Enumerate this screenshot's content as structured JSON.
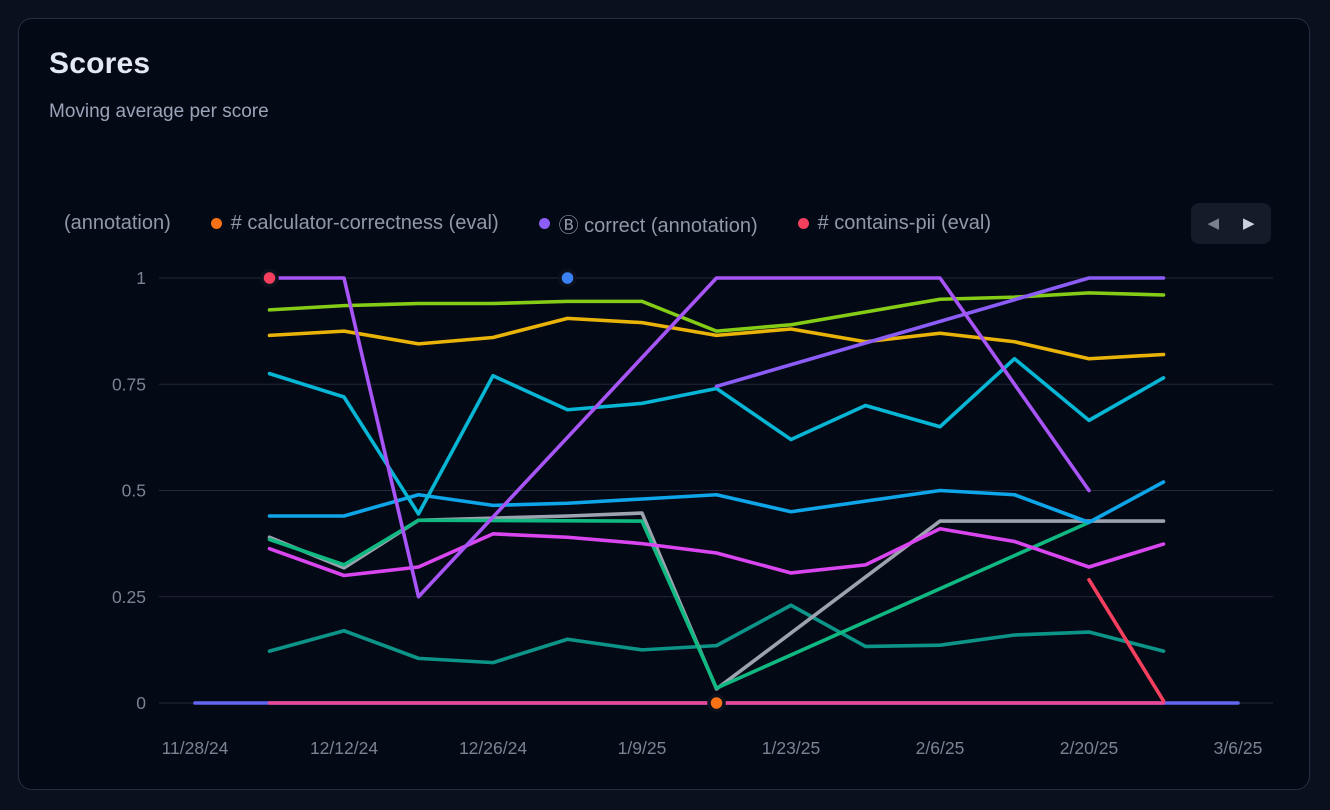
{
  "card": {
    "title": "Scores",
    "subtitle": "Moving average per score"
  },
  "legend": {
    "items": [
      {
        "label": "(annotation)",
        "dot": null
      },
      {
        "label": "# calculator-correctness (eval)",
        "dot": "#f97316"
      },
      {
        "label": "Ⓑ correct (annotation)",
        "dot": "#8b5cf6"
      },
      {
        "label": "# contains-pii (eval)",
        "dot": "#f43f5e"
      }
    ],
    "prev_icon": "◀",
    "next_icon": "▶"
  },
  "chart_data": {
    "type": "line",
    "title": "Scores",
    "subtitle": "Moving average per score",
    "grid": "horizontal",
    "legend_position": "top",
    "ylim": [
      0,
      1
    ],
    "y_tick_labels": [
      "0",
      "0.25",
      "0.5",
      "0.75",
      "1"
    ],
    "y_ticks": [
      0,
      0.25,
      0.5,
      0.75,
      1
    ],
    "x_tick_labels": [
      "11/28/24",
      "12/12/24",
      "12/26/24",
      "1/9/25",
      "1/23/25",
      "2/6/25",
      "2/20/25",
      "3/6/25"
    ],
    "x_week_dates": [
      "11/28/24",
      "12/5/24",
      "12/12/24",
      "12/19/24",
      "12/26/24",
      "1/2/25",
      "1/9/25",
      "1/16/25",
      "1/23/25",
      "1/30/25",
      "2/6/25",
      "2/13/25",
      "2/20/25",
      "2/27/25",
      "3/6/25"
    ],
    "series": [
      {
        "id": "indigo-baseline",
        "color": "#6366f1",
        "points": [
          [
            0,
            0
          ],
          [
            14,
            0
          ]
        ]
      },
      {
        "id": "pink-baseline",
        "color": "#ec4899",
        "points": [
          [
            1,
            0
          ],
          [
            13,
            0
          ]
        ]
      },
      {
        "id": "teal-line",
        "color": "#0d9488",
        "points": [
          [
            1,
            0.122
          ],
          [
            2,
            0.17
          ],
          [
            3,
            0.105
          ],
          [
            4,
            0.095
          ],
          [
            5,
            0.15
          ],
          [
            6,
            0.125
          ],
          [
            7,
            0.135
          ],
          [
            8,
            0.23
          ],
          [
            9,
            0.133
          ],
          [
            10,
            0.136
          ],
          [
            11,
            0.16
          ],
          [
            12,
            0.167
          ],
          [
            13,
            0.122
          ]
        ]
      },
      {
        "id": "gray-line",
        "color": "#9ca3af",
        "points": [
          [
            1,
            0.39
          ],
          [
            2,
            0.318
          ],
          [
            3,
            0.43
          ],
          [
            5,
            0.44
          ],
          [
            6,
            0.447
          ],
          [
            7,
            0.033
          ],
          [
            10,
            0.428
          ],
          [
            13,
            0.428
          ]
        ]
      },
      {
        "id": "emerald-line",
        "color": "#10b981",
        "points": [
          [
            1,
            0.385
          ],
          [
            2,
            0.325
          ],
          [
            3,
            0.43
          ],
          [
            6,
            0.428
          ],
          [
            7,
            0.035
          ],
          [
            12,
            0.425
          ]
        ]
      },
      {
        "id": "magenta-line",
        "color": "#d946ef",
        "points": [
          [
            1,
            0.363
          ],
          [
            2,
            0.3
          ],
          [
            3,
            0.32
          ],
          [
            4,
            0.398
          ],
          [
            5,
            0.39
          ],
          [
            6,
            0.375
          ],
          [
            7,
            0.353
          ],
          [
            8,
            0.306
          ],
          [
            9,
            0.325
          ],
          [
            10,
            0.41
          ],
          [
            11,
            0.38
          ],
          [
            12,
            0.32
          ],
          [
            13,
            0.374
          ]
        ]
      },
      {
        "id": "blue-line",
        "color": "#0ea5e9",
        "points": [
          [
            1,
            0.44
          ],
          [
            2,
            0.44
          ],
          [
            3,
            0.49
          ],
          [
            4,
            0.465
          ],
          [
            5,
            0.47
          ],
          [
            6,
            0.48
          ],
          [
            7,
            0.49
          ],
          [
            8,
            0.45
          ],
          [
            9,
            0.475
          ],
          [
            10,
            0.5
          ],
          [
            11,
            0.49
          ],
          [
            12,
            0.425
          ],
          [
            13,
            0.52
          ]
        ]
      },
      {
        "id": "cyan-line",
        "color": "#06b6d4",
        "points": [
          [
            1,
            0.775
          ],
          [
            2,
            0.72
          ],
          [
            3,
            0.445
          ],
          [
            4,
            0.77
          ],
          [
            5,
            0.69
          ],
          [
            6,
            0.705
          ],
          [
            7,
            0.74
          ],
          [
            8,
            0.62
          ],
          [
            9,
            0.7
          ],
          [
            10,
            0.65
          ],
          [
            11,
            0.81
          ],
          [
            12,
            0.665
          ],
          [
            13,
            0.765
          ]
        ]
      },
      {
        "id": "amber-line",
        "color": "#eab308",
        "points": [
          [
            1,
            0.865
          ],
          [
            2,
            0.875
          ],
          [
            3,
            0.845
          ],
          [
            4,
            0.86
          ],
          [
            5,
            0.905
          ],
          [
            6,
            0.895
          ],
          [
            7,
            0.865
          ],
          [
            8,
            0.88
          ],
          [
            9,
            0.85
          ],
          [
            10,
            0.87
          ],
          [
            11,
            0.85
          ],
          [
            12,
            0.81
          ],
          [
            13,
            0.82
          ]
        ]
      },
      {
        "id": "lime-line",
        "color": "#84cc16",
        "points": [
          [
            1,
            0.925
          ],
          [
            2,
            0.935
          ],
          [
            3,
            0.94
          ],
          [
            4,
            0.94
          ],
          [
            5,
            0.945
          ],
          [
            6,
            0.945
          ],
          [
            7,
            0.875
          ],
          [
            8,
            0.89
          ],
          [
            9,
            0.92
          ],
          [
            10,
            0.95
          ],
          [
            11,
            0.955
          ],
          [
            12,
            0.965
          ],
          [
            13,
            0.96
          ]
        ]
      },
      {
        "id": "violet-line",
        "color": "#8b5cf6",
        "points": [
          [
            7,
            0.745
          ],
          [
            12,
            1
          ],
          [
            13,
            1
          ]
        ]
      },
      {
        "id": "purple-line",
        "color": "#a855f7",
        "points": [
          [
            1,
            1
          ],
          [
            2,
            1
          ],
          [
            3,
            0.25
          ],
          [
            7,
            1
          ],
          [
            10,
            1
          ],
          [
            12,
            0.5
          ]
        ]
      },
      {
        "id": "red-line",
        "color": "#f43f5e",
        "points": [
          [
            12,
            0.29
          ],
          [
            13,
            0.005
          ]
        ]
      }
    ],
    "markers": [
      {
        "id": "red-point",
        "week": 1,
        "value": 1,
        "color": "#f43f5e"
      },
      {
        "id": "blue-point",
        "week": 5,
        "value": 1,
        "color": "#3b82f6"
      },
      {
        "id": "orange-point",
        "week": 7,
        "value": 0,
        "color": "#f97316"
      }
    ]
  }
}
